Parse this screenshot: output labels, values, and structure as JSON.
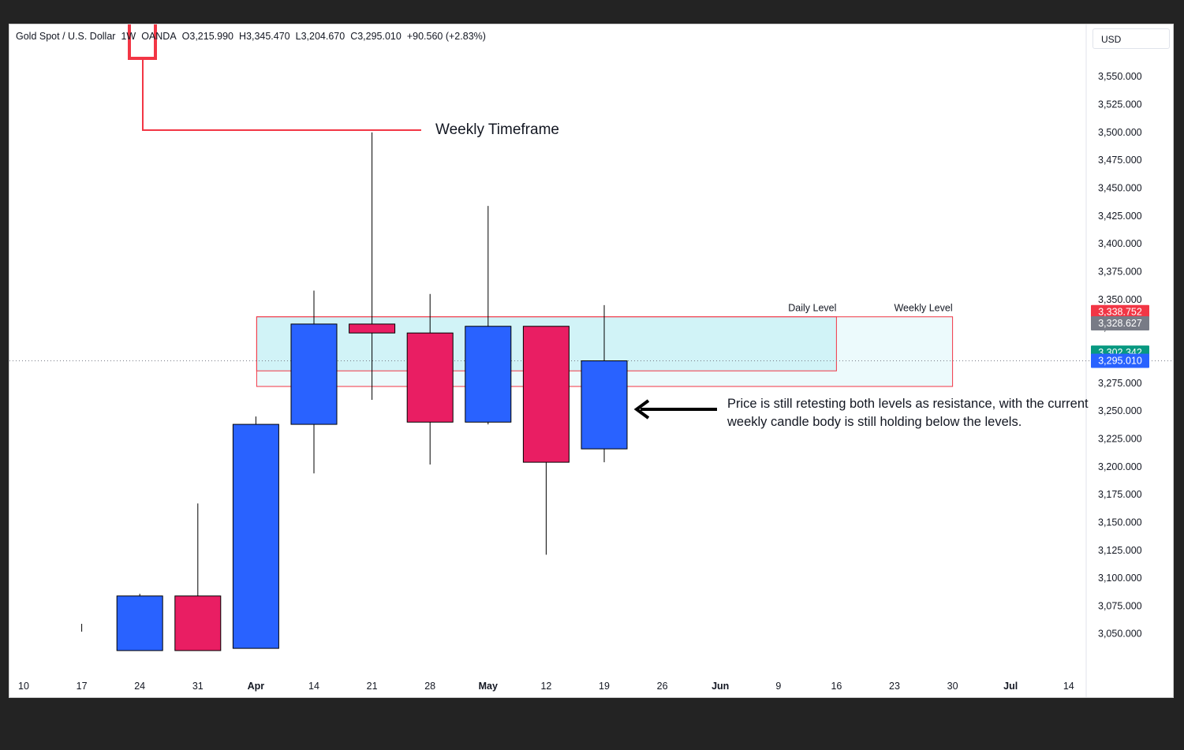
{
  "legend": {
    "symbol": "Gold Spot / U.S. Dollar",
    "timeframe": "1W",
    "source": "OANDA",
    "open": "O3,215.990",
    "high": "H3,345.470",
    "low": "L3,204.670",
    "close": "C3,295.010",
    "change": "+90.560 (+2.83%)"
  },
  "currency": "USD",
  "annotations": {
    "timeframe_callout": "Weekly Timeframe",
    "note": "Price is still retesting both levels as resistance, with the current weekly candle body is still holding below the levels.",
    "daily_level_label": "Daily Level",
    "weekly_level_label": "Weekly Level"
  },
  "colors": {
    "up": "#2962ff",
    "down": "#e91e63",
    "zone_fill": "#b2ebf2",
    "zone_border": "#f23645",
    "callout": "#f23645",
    "arrow": "#000000",
    "badge_red": "#f23645",
    "badge_gray": "#787b86",
    "badge_green": "#089981",
    "badge_blue": "#2962ff"
  },
  "chart_data": {
    "type": "candlestick",
    "title": "Gold Spot / U.S. Dollar",
    "timeframe": "1W",
    "x_tick_labels": [
      "10",
      "17",
      "24",
      "31",
      "Apr",
      "14",
      "21",
      "28",
      "May",
      "12",
      "19",
      "26",
      "Jun",
      "9",
      "16",
      "23",
      "30",
      "Jul",
      "14"
    ],
    "bold_x_ticks": [
      "Apr",
      "May",
      "Jun",
      "Jul"
    ],
    "y_tick_labels": [
      "3,550.000",
      "3,525.000",
      "3,500.000",
      "3,475.000",
      "3,450.000",
      "3,425.000",
      "3,400.000",
      "3,375.000",
      "3,350.000",
      "3,325.000",
      "3,300.000",
      "3,275.000",
      "3,250.000",
      "3,225.000",
      "3,200.000",
      "3,175.000",
      "3,150.000",
      "3,125.000",
      "3,100.000",
      "3,075.000",
      "3,050.000"
    ],
    "ylim": [
      3030,
      3565
    ],
    "candles": [
      {
        "x": "17",
        "open": 3052,
        "high": 3059,
        "low": 3052,
        "close": 3052
      },
      {
        "x": "24",
        "open": 3035,
        "high": 3086,
        "low": 3035,
        "close": 3084
      },
      {
        "x": "31",
        "open": 3084,
        "high": 3167,
        "low": 3035,
        "close": 3035
      },
      {
        "x": "Apr",
        "open": 3037,
        "high": 3245,
        "low": 3037,
        "close": 3238
      },
      {
        "x": "14",
        "open": 3238,
        "high": 3358,
        "low": 3194,
        "close": 3328
      },
      {
        "x": "21",
        "open": 3328,
        "high": 3500,
        "low": 3260,
        "close": 3320
      },
      {
        "x": "28",
        "open": 3320,
        "high": 3355,
        "low": 3202,
        "close": 3240
      },
      {
        "x": "May",
        "open": 3240,
        "high": 3434,
        "low": 3238,
        "close": 3326
      },
      {
        "x": "12",
        "open": 3326,
        "high": 3326,
        "low": 3121,
        "close": 3204
      },
      {
        "x": "19",
        "open": 3216,
        "high": 3345,
        "low": 3204,
        "close": 3295
      }
    ],
    "zones": [
      {
        "name": "Daily Level",
        "from": "Apr",
        "to": "16",
        "top": 3334.5,
        "bottom": 3286
      },
      {
        "name": "Weekly Level",
        "from": "Apr",
        "to": "30",
        "top": 3334.5,
        "bottom": 3272
      }
    ],
    "current_price_line": 3295.01,
    "price_badges": [
      {
        "value": "3,338.752",
        "color": "red"
      },
      {
        "value": "3,328.627",
        "color": "gray"
      },
      {
        "value": "3,302.342",
        "color": "green"
      },
      {
        "value": "3,295.010",
        "color": "blue"
      }
    ]
  }
}
